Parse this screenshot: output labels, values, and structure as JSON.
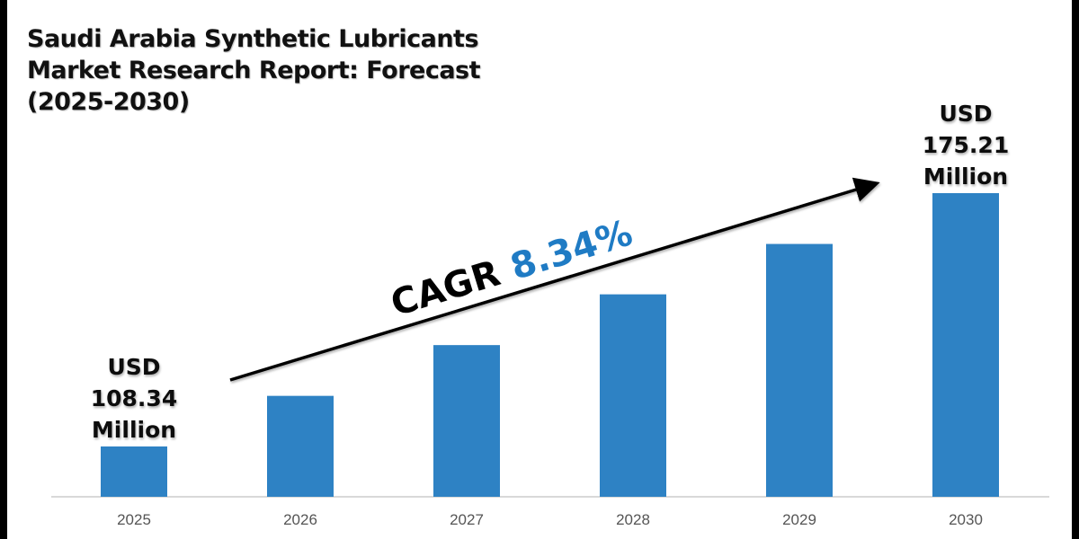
{
  "chart_data": {
    "type": "bar",
    "title": "Saudi Arabia Synthetic Lubricants Market Research Report: Forecast (2025-2030)",
    "categories": [
      "2025",
      "2026",
      "2027",
      "2028",
      "2029",
      "2030"
    ],
    "values": [
      108.34,
      121.7,
      135.1,
      148.5,
      161.8,
      175.21
    ],
    "unit": "USD Million",
    "xlabel": "",
    "ylabel": "",
    "grid": false,
    "legend": "none",
    "annotations": {
      "start": {
        "category": "2025",
        "lines": [
          "USD",
          "108.34",
          "Million"
        ]
      },
      "end": {
        "category": "2030",
        "lines": [
          "USD",
          "175.21",
          "Million"
        ]
      },
      "cagr": {
        "label": "CAGR",
        "value": "8.34%"
      }
    }
  },
  "colors": {
    "bar": "#2e82c4",
    "cagr_value": "#1f7bc4",
    "axis": "#d9d9d9",
    "frame": "#000000"
  }
}
